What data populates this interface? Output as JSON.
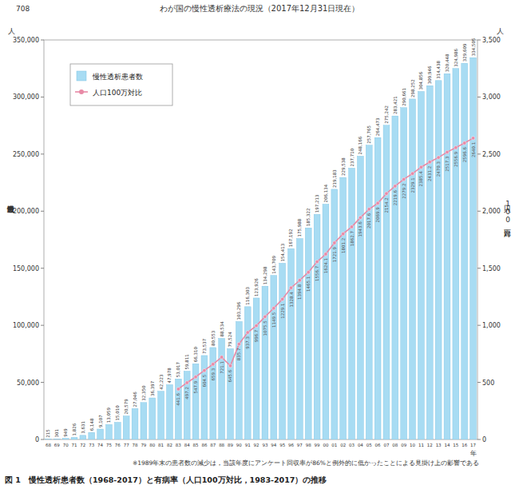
{
  "chart_data": {
    "type": "bar",
    "page_number": "708",
    "header": "わが国の慢性透析療法の現況（2017年12月31日現在）",
    "title": "図 1　慢性透析患者数（1968-2017）と有病率（人口100万対比，1983-2017）の推移",
    "note": "※1989年末の患者数の減少は，当該年度にアンケート回収率が86%と例外的に低かったことによる見掛け上の影響である",
    "y_label": "慢性透析患者数",
    "y_unit": "人",
    "y2_label": "人口100万対比",
    "y2_unit": "人",
    "x_label": "年",
    "categories": [
      "68",
      "69",
      "70",
      "71",
      "72",
      "73",
      "74",
      "75",
      "76",
      "77",
      "78",
      "79",
      "80",
      "81",
      "82",
      "83",
      "84",
      "85",
      "86",
      "87",
      "88",
      "89",
      "90",
      "91",
      "92",
      "93",
      "94",
      "95",
      "96",
      "97",
      "98",
      "99",
      "00",
      "01",
      "02",
      "03",
      "04",
      "05",
      "06",
      "07",
      "08",
      "09",
      "10",
      "11",
      "12",
      "13",
      "14",
      "15",
      "16",
      "17"
    ],
    "series": [
      {
        "name": "慢性透析患者数",
        "type": "bar",
        "color": "#a8dcf3",
        "values": [
          215,
          301,
          949,
          1826,
          3631,
          6148,
          9107,
          13059,
          15010,
          20579,
          27046,
          32350,
          36397,
          42223,
          47978,
          53017,
          59811,
          66310,
          73537,
          80553,
          88534,
          79524,
          103296,
          116303,
          123926,
          134298,
          143709,
          154413,
          167192,
          175988,
          185322,
          197213,
          206134,
          219183,
          229538,
          237710,
          248166,
          257765,
          264473,
          275242,
          283421,
          290661,
          298252,
          304856,
          309946,
          314438,
          320448,
          324986,
          329609,
          334505
        ],
        "value_labels": [
          "215",
          "301",
          "949",
          "1,826",
          "3,631",
          "6,148",
          "9,107",
          "13,059",
          "15,010",
          "20,579",
          "27,046",
          "32,350",
          "36,397",
          "42,223",
          "47,978",
          "53,017",
          "59,811",
          "66,310",
          "73,537",
          "80,553",
          "88,534",
          "79,524",
          "103,296",
          "116,303",
          "123,926",
          "134,298",
          "143,709",
          "154,413",
          "167,192",
          "175,988",
          "185,322",
          "197,213",
          "206,134",
          "219,183",
          "229,538",
          "237,710",
          "248,166",
          "257,765",
          "264,473",
          "275,242",
          "283,421",
          "290,661",
          "298,252",
          "304,856",
          "309,946",
          "314,438",
          "320,448",
          "324,986",
          "329,609",
          "334,505"
        ]
      },
      {
        "name": "人口100万対比",
        "type": "line",
        "axis": "y2",
        "color": "#e88aa6",
        "marker": "circle",
        "values": [
          null,
          null,
          null,
          null,
          null,
          null,
          null,
          null,
          null,
          null,
          null,
          null,
          null,
          null,
          null,
          441.6,
          497.2,
          547.9,
          604.5,
          659.3,
          721.1,
          645.6,
          835.7,
          937.3,
          996.7,
          1075.5,
          1149.5,
          1229.1,
          1328.4,
          1394.8,
          1465.1,
          1556.7,
          1624.1,
          1721.9,
          1801.2,
          1862.7,
          1943.6,
          2017.6,
          2069.9,
          2154.2,
          2219.6,
          2279.2,
          2329.1,
          2385.4,
          2431.2,
          2470.3,
          2517.3,
          2556.9,
          2596.6,
          2640.1
        ]
      }
    ],
    "ylim": [
      0,
      350000
    ],
    "yticks": [
      0,
      {
        "value": 50000,
        "label": "50,000"
      },
      {
        "value": 100000,
        "label": "100,000"
      },
      {
        "value": 150000,
        "label": "150,000"
      },
      {
        "value": 200000,
        "label": "200,000"
      },
      {
        "value": 250000,
        "label": "250,000"
      },
      {
        "value": 300000,
        "label": "300,000"
      },
      {
        "value": 350000,
        "label": "350,000"
      }
    ],
    "y2lim": [
      0,
      3500
    ],
    "y2ticks": [
      0,
      500,
      {
        "value": 1000,
        "label": "1,000"
      },
      {
        "value": 1500,
        "label": "1,500"
      },
      {
        "value": 2000,
        "label": "2,000"
      },
      {
        "value": 2500,
        "label": "2,500"
      },
      {
        "value": 3000,
        "label": "3,000"
      },
      {
        "value": 3500,
        "label": "3,500"
      }
    ],
    "grid": false,
    "legend": "top-left",
    "data_labels": true
  }
}
